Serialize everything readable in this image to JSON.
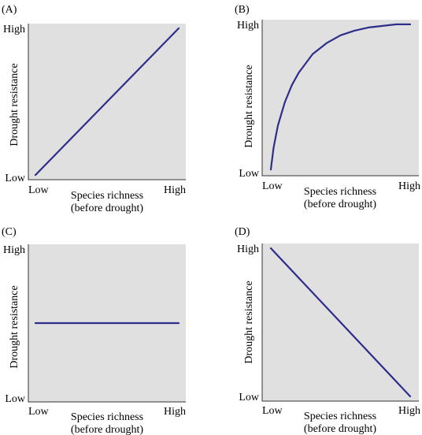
{
  "chart_data": [
    {
      "type": "line",
      "panel_label": "(A)",
      "xlabel_line1": "Species richness",
      "xlabel_line2": "(before drought)",
      "ylabel": "Drought resistance",
      "x_ticks": [
        "Low",
        "High"
      ],
      "y_ticks": [
        "Low",
        "High"
      ],
      "xlim": [
        0,
        1
      ],
      "ylim": [
        0,
        1
      ],
      "grid": false,
      "series": [
        {
          "x": [
            0.0,
            1.0
          ],
          "y": [
            0.03,
            0.97
          ]
        }
      ]
    },
    {
      "type": "line",
      "panel_label": "(B)",
      "xlabel_line1": "Species richness",
      "xlabel_line2": "(before drought)",
      "ylabel": "Drought resistance",
      "x_ticks": [
        "Low",
        "High"
      ],
      "y_ticks": [
        "Low",
        "High"
      ],
      "xlim": [
        0,
        1
      ],
      "ylim": [
        0,
        1
      ],
      "grid": false,
      "series": [
        {
          "x": [
            0.0,
            0.02,
            0.05,
            0.1,
            0.15,
            0.2,
            0.3,
            0.4,
            0.5,
            0.6,
            0.7,
            0.8,
            0.9,
            1.0
          ],
          "y": [
            0.04,
            0.18,
            0.32,
            0.47,
            0.58,
            0.66,
            0.78,
            0.85,
            0.9,
            0.93,
            0.95,
            0.96,
            0.97,
            0.97
          ]
        }
      ]
    },
    {
      "type": "line",
      "panel_label": "(C)",
      "xlabel_line1": "Species richness",
      "xlabel_line2": "(before drought)",
      "ylabel": "Drought resistance",
      "x_ticks": [
        "Low",
        "High"
      ],
      "y_ticks": [
        "Low",
        "High"
      ],
      "xlim": [
        0,
        1
      ],
      "ylim": [
        0,
        1
      ],
      "grid": false,
      "series": [
        {
          "x": [
            0.0,
            1.0
          ],
          "y": [
            0.5,
            0.5
          ]
        }
      ]
    },
    {
      "type": "line",
      "panel_label": "(D)",
      "xlabel_line1": "Species richness",
      "xlabel_line2": "(before drought)",
      "ylabel": "Drought resistance",
      "x_ticks": [
        "Low",
        "High"
      ],
      "y_ticks": [
        "High",
        "Low"
      ],
      "xlim": [
        0,
        1
      ],
      "ylim": [
        0,
        1
      ],
      "grid": false,
      "series": [
        {
          "x": [
            0.0,
            1.0
          ],
          "y": [
            0.97,
            0.03
          ]
        }
      ]
    }
  ],
  "style": {
    "plot_bg": "#e0e0e0",
    "line_color": "#2e2e8a",
    "axis_color": "#333333"
  }
}
